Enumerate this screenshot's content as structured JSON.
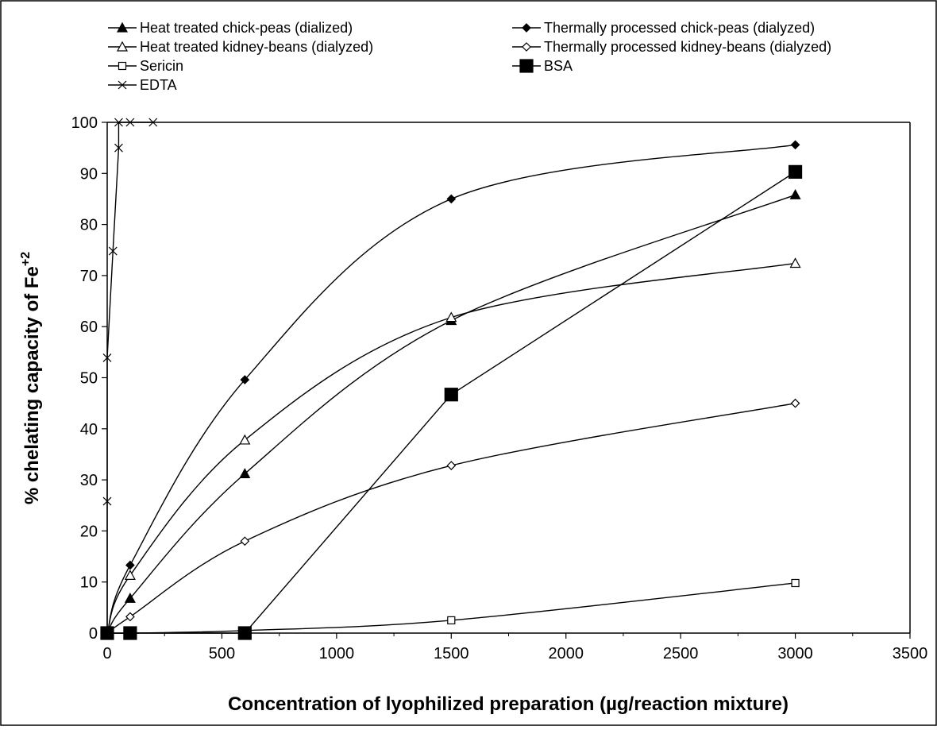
{
  "chart_data": {
    "type": "line",
    "title": "",
    "xlabel": "Concentration of lyophilized preparation (µg/reaction mixture)",
    "ylabel_main": "% chelating capacity of Fe",
    "ylabel_sup": "+2",
    "xlim": [
      0,
      3500
    ],
    "ylim": [
      0,
      100
    ],
    "x_ticks": [
      "0",
      "500",
      "1000",
      "1500",
      "2000",
      "2500",
      "3000",
      "3500"
    ],
    "y_ticks": [
      "0",
      "10",
      "20",
      "30",
      "40",
      "50",
      "60",
      "70",
      "80",
      "90",
      "100"
    ],
    "grid": false,
    "legend_position": "top",
    "series": [
      {
        "name": "Heat treated chick-peas (dialized)",
        "marker": "triangle-filled",
        "smooth": true,
        "x": [
          0,
          100,
          600,
          1500,
          3000
        ],
        "y": [
          0,
          6.8,
          31.2,
          61.2,
          85.8
        ]
      },
      {
        "name": "Thermally processed chick-peas (dialyzed)",
        "marker": "diamond-filled",
        "smooth": true,
        "x": [
          0,
          100,
          600,
          1500,
          3000
        ],
        "y": [
          0,
          13.3,
          49.6,
          85.0,
          95.6
        ]
      },
      {
        "name": "Heat treated kidney-beans (dialyzed)",
        "marker": "triangle-open",
        "smooth": true,
        "x": [
          0,
          100,
          600,
          1500,
          3000
        ],
        "y": [
          0,
          11.3,
          37.8,
          61.8,
          72.4
        ]
      },
      {
        "name": "Thermally processed kidney-beans (dialyzed)",
        "marker": "diamond-open",
        "smooth": true,
        "x": [
          0,
          100,
          600,
          1500,
          3000
        ],
        "y": [
          0,
          3.2,
          18.0,
          32.8,
          45.0
        ]
      },
      {
        "name": "Sericin",
        "marker": "square-open",
        "smooth": true,
        "x": [
          0,
          100,
          600,
          1500,
          3000
        ],
        "y": [
          0,
          0.0,
          0.5,
          2.5,
          9.8
        ]
      },
      {
        "name": "BSA",
        "marker": "square-filled",
        "smooth": false,
        "x": [
          0,
          100,
          600,
          1500,
          3000
        ],
        "y": [
          0,
          0,
          0,
          46.7,
          90.3
        ]
      },
      {
        "name": "EDTA",
        "marker": "cross",
        "smooth": false,
        "x": [
          0,
          0,
          0,
          25,
          50,
          50,
          100,
          200
        ],
        "y": [
          0,
          25.8,
          53.9,
          74.8,
          95.0,
          100,
          100,
          100
        ]
      }
    ]
  }
}
